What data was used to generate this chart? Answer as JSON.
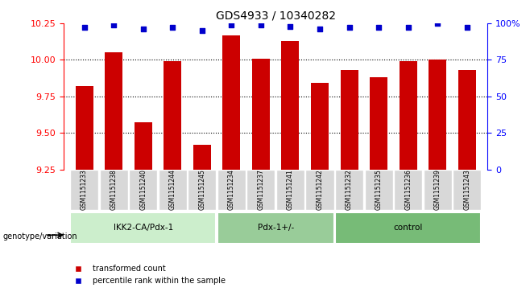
{
  "title": "GDS4933 / 10340282",
  "samples": [
    "GSM1151233",
    "GSM1151238",
    "GSM1151240",
    "GSM1151244",
    "GSM1151245",
    "GSM1151234",
    "GSM1151237",
    "GSM1151241",
    "GSM1151242",
    "GSM1151232",
    "GSM1151235",
    "GSM1151236",
    "GSM1151239",
    "GSM1151243"
  ],
  "red_values": [
    9.82,
    10.05,
    9.57,
    9.99,
    9.42,
    10.17,
    10.01,
    10.13,
    9.84,
    9.93,
    9.88,
    9.99,
    10.0,
    9.93
  ],
  "blue_values": [
    97,
    99,
    96,
    97,
    95,
    99,
    99,
    98,
    96,
    97,
    97,
    97,
    100,
    97
  ],
  "ylim_left": [
    9.25,
    10.25
  ],
  "ylim_right": [
    0,
    100
  ],
  "yticks_left": [
    9.25,
    9.5,
    9.75,
    10.0,
    10.25
  ],
  "yticks_right": [
    0,
    25,
    50,
    75,
    100
  ],
  "groups": [
    {
      "label": "IKK2-CA/Pdx-1",
      "start": 0,
      "end": 5,
      "color": "#ccffcc"
    },
    {
      "label": "Pdx-1+/-",
      "start": 5,
      "end": 9,
      "color": "#99dd99"
    },
    {
      "label": "control",
      "start": 9,
      "end": 14,
      "color": "#66bb66"
    }
  ],
  "bar_color": "#cc0000",
  "dot_color": "#0000cc",
  "bar_width": 0.6,
  "background_color": "#ffffff",
  "grid_color": "#000000",
  "legend_red": "transformed count",
  "legend_blue": "percentile rank within the sample",
  "genotype_label": "genotype/variation"
}
